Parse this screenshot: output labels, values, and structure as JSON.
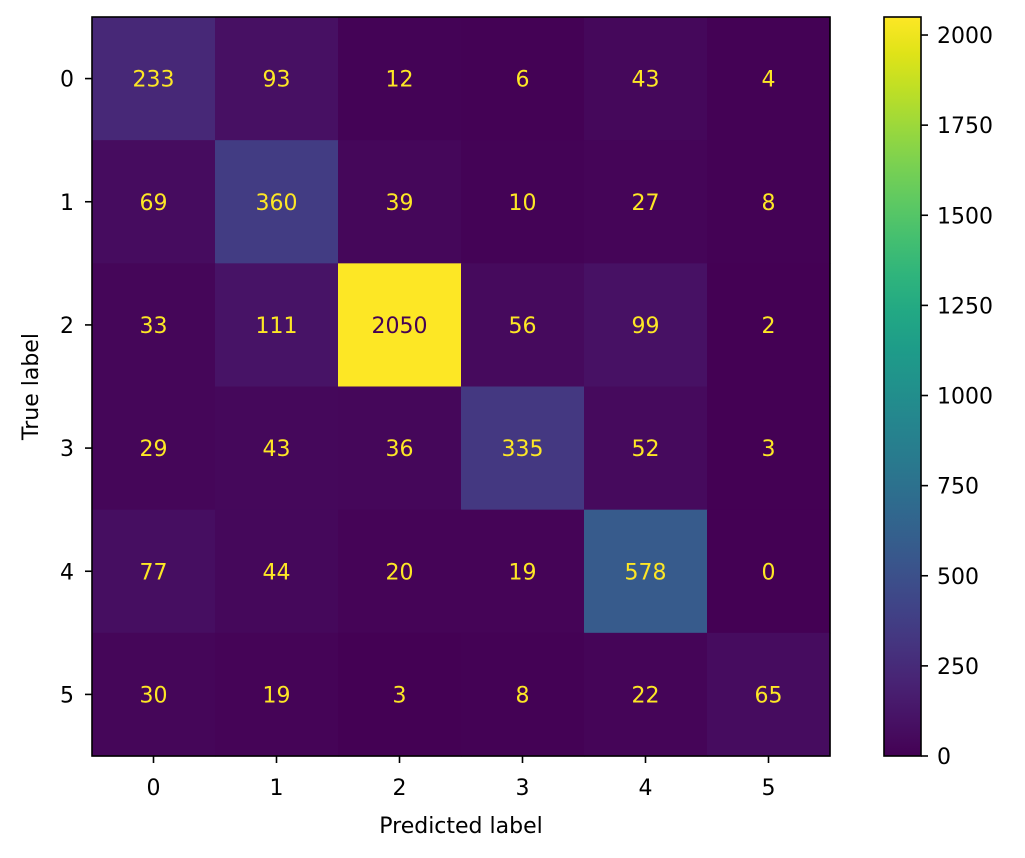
{
  "chart_data": {
    "type": "heatmap",
    "title": "",
    "xlabel": "Predicted label",
    "ylabel": "True label",
    "x_categories": [
      "0",
      "1",
      "2",
      "3",
      "4",
      "5"
    ],
    "y_categories": [
      "0",
      "1",
      "2",
      "3",
      "4",
      "5"
    ],
    "values": [
      [
        233,
        93,
        12,
        6,
        43,
        4
      ],
      [
        69,
        360,
        39,
        10,
        27,
        8
      ],
      [
        33,
        111,
        2050,
        56,
        99,
        2
      ],
      [
        29,
        43,
        36,
        335,
        52,
        3
      ],
      [
        77,
        44,
        20,
        19,
        578,
        0
      ],
      [
        30,
        19,
        3,
        8,
        22,
        65
      ]
    ],
    "colormap": "viridis",
    "vmin": 0,
    "vmax": 2050,
    "colorbar_ticks": [
      0,
      250,
      500,
      750,
      1000,
      1250,
      1500,
      1750,
      2000
    ],
    "annotation_color": "#fde725",
    "grid": false
  }
}
